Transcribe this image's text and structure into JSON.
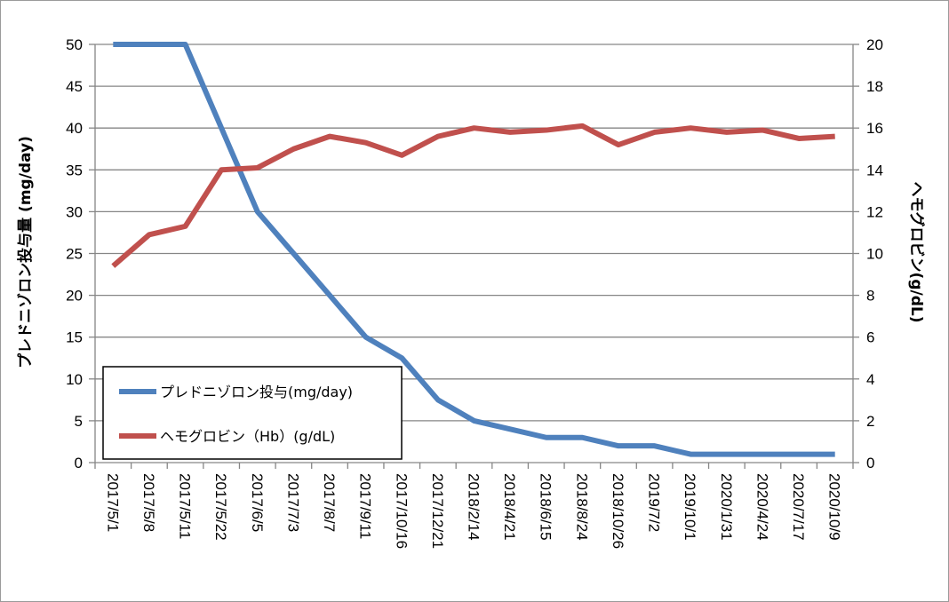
{
  "chart_data": {
    "type": "line",
    "categories": [
      "2017/5/1",
      "2017/5/8",
      "2017/5/11",
      "2017/5/22",
      "2017/6/5",
      "2017/7/3",
      "2017/8/7",
      "2017/9/11",
      "2017/10/16",
      "2017/12/21",
      "2018/2/14",
      "2018/4/21",
      "2018/6/15",
      "2018/8/24",
      "2018/10/26",
      "2019/7/2",
      "2019/10/1",
      "2020/1/31",
      "2020/4/24",
      "2020/7/17",
      "2020/10/9"
    ],
    "series": [
      {
        "name": "プレドニゾロン投与(mg/day)",
        "axis": "left",
        "color": "#4f81bd",
        "values": [
          50,
          50,
          50,
          40,
          30,
          25,
          20,
          15,
          12.5,
          7.5,
          5,
          4,
          3,
          3,
          2,
          2,
          1,
          1,
          1,
          1,
          1
        ]
      },
      {
        "name": "ヘモグロビン（Hb）(g/dL)",
        "axis": "right",
        "color": "#c0504d",
        "values": [
          9.4,
          10.9,
          11.3,
          14.0,
          14.1,
          15.0,
          15.6,
          15.3,
          14.7,
          15.6,
          16.0,
          15.8,
          15.9,
          16.1,
          15.2,
          15.8,
          16.0,
          15.8,
          15.9,
          15.5,
          15.6
        ]
      }
    ],
    "ylabel": "プレドニゾロン投与量 (mg/day)",
    "y2label": "ヘモグロビン(g/dL)",
    "xlabel": "",
    "title": "",
    "ylim": [
      0,
      50
    ],
    "y2lim": [
      0,
      20
    ],
    "yticks": [
      0,
      5,
      10,
      15,
      20,
      25,
      30,
      35,
      40,
      45,
      50
    ],
    "y2ticks": [
      0,
      2,
      4,
      6,
      8,
      10,
      12,
      14,
      16,
      18,
      20
    ],
    "grid": true,
    "legend": "bottom-left"
  }
}
